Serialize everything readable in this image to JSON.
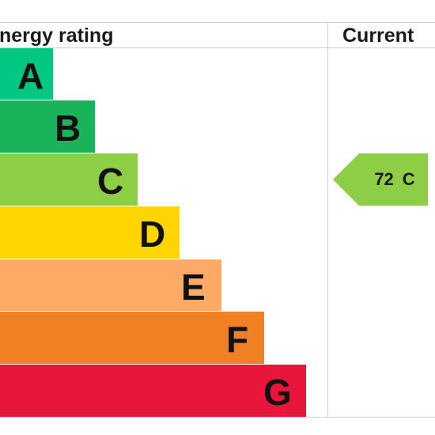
{
  "header": {
    "rating_label": "nergy rating",
    "current_label": "Current"
  },
  "chart_data": {
    "type": "bar",
    "categories": [
      "A",
      "B",
      "C",
      "D",
      "E",
      "F",
      "G"
    ],
    "colors": [
      "#00c781",
      "#19b459",
      "#8dce46",
      "#ffd500",
      "#fcaa65",
      "#ef8023",
      "#e9153b"
    ],
    "current": {
      "value": "72",
      "band": "C",
      "color": "#8dce46"
    }
  }
}
